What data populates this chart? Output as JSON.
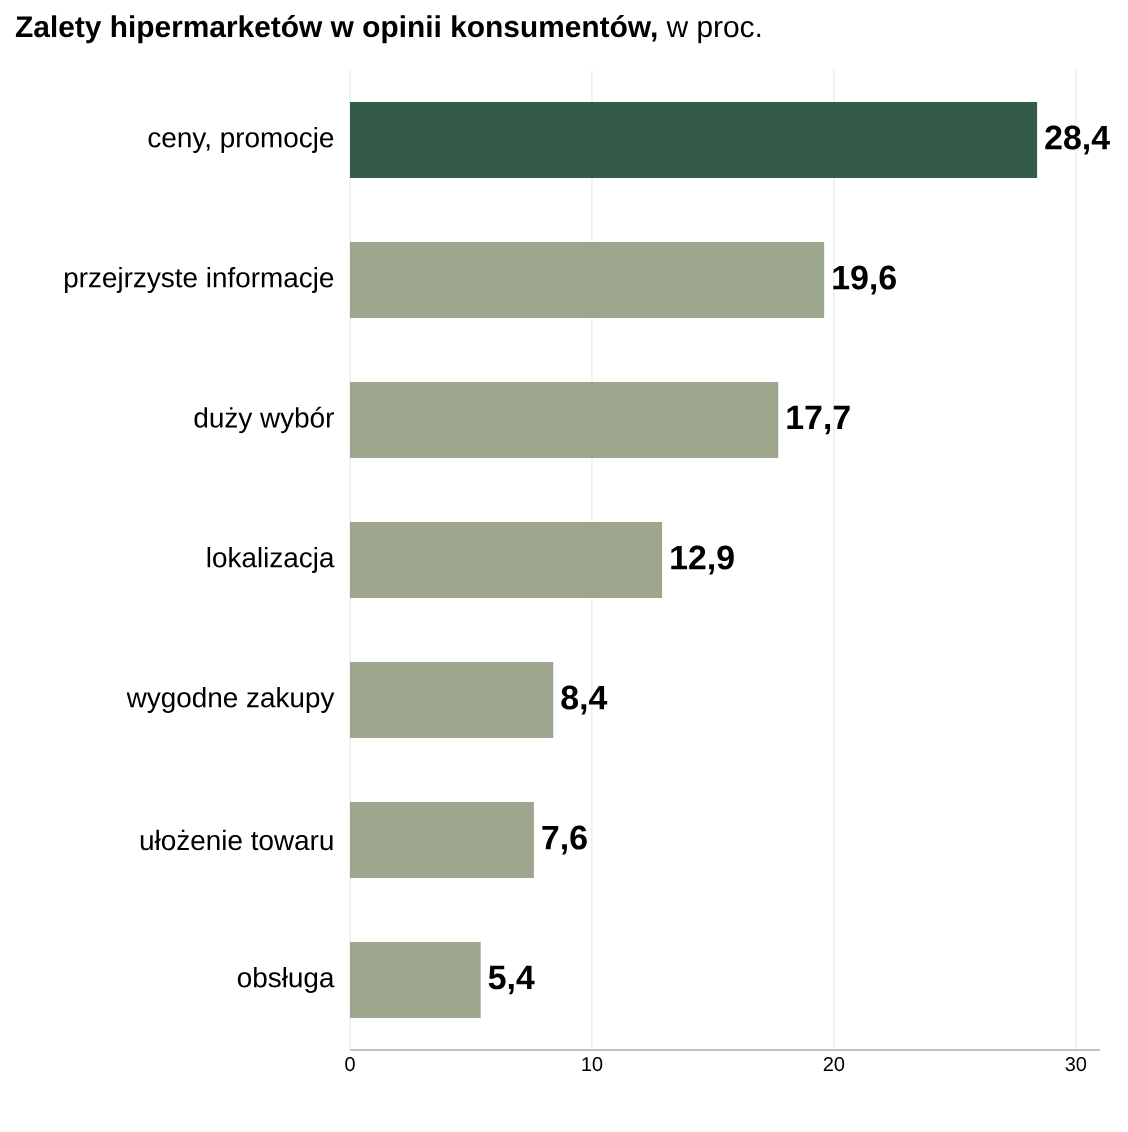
{
  "chart_data": {
    "type": "bar",
    "orientation": "horizontal",
    "title": "**Zalety hipermarketów w opinii konsumentów,** w proc.",
    "categories": [
      "ceny, promocje",
      "przejrzyste informacje",
      "duży wybór",
      "lokalizacja",
      "wygodne zakupy",
      "ułożenie towaru",
      "obsługa"
    ],
    "values": [
      28.4,
      19.6,
      17.7,
      12.9,
      8.4,
      7.6,
      5.4
    ],
    "colors": [
      "#335b47",
      "#9ca58d",
      "#9ca58d",
      "#9ca58d",
      "#9ca58d",
      "#9ca58d",
      "#9ca58d"
    ],
    "value_labels": [
      "28,4",
      "19,6",
      "17,7",
      "12,9",
      "8,4",
      "7,6",
      "5,4"
    ],
    "xlim": [
      0,
      31
    ],
    "xticks": [
      0,
      10,
      20,
      30
    ],
    "grid": "x"
  }
}
